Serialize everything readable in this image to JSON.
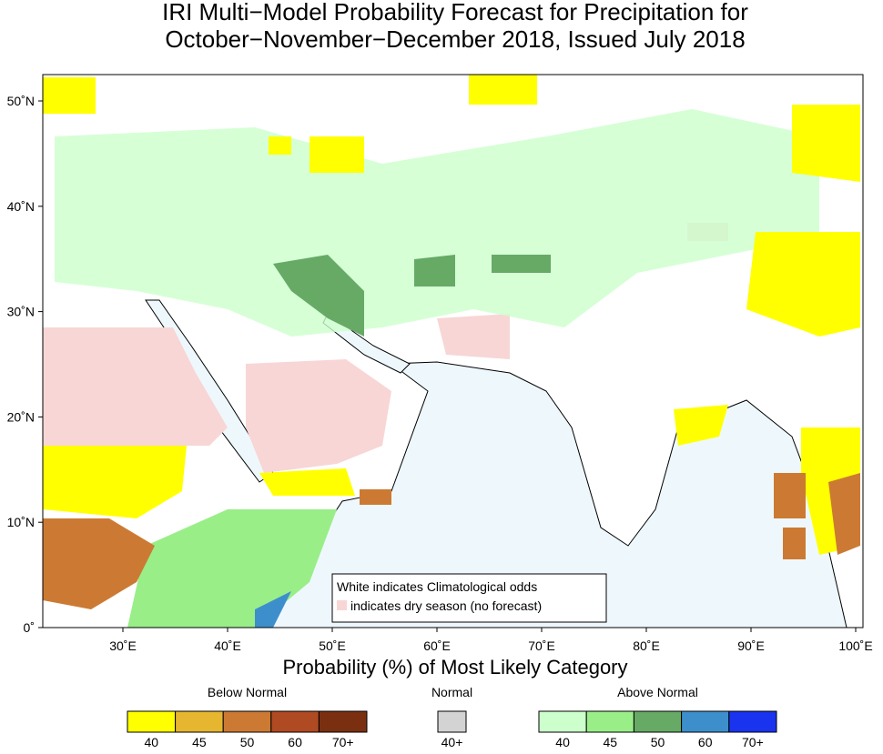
{
  "title": [
    "IRI Multi−Model Probability Forecast for Precipitation for",
    "October−November−December 2018, Issued July 2018"
  ],
  "lat_labels": [
    "50˚N",
    "40˚N",
    "30˚N",
    "20˚N",
    "10˚N",
    "0˚"
  ],
  "lon_labels": [
    "30˚E",
    "40˚E",
    "50˚E",
    "60˚E",
    "70˚E",
    "80˚E",
    "90˚E",
    "100˚E"
  ],
  "map_note": [
    "White indicates Climatological odds",
    "indicates dry season (no forecast)"
  ],
  "colorbar_title": "Probability (%) of Most Likely Category",
  "legend_groups": [
    {
      "name": "Below Normal",
      "colors": [
        "#ffff00",
        "#e6b630",
        "#cc7a33",
        "#b04a22",
        "#7a3010"
      ],
      "labels": [
        "40",
        "45",
        "50",
        "60",
        "70+"
      ]
    },
    {
      "name": "Normal",
      "colors": [
        "#d3d3d3"
      ],
      "labels": [
        "40+"
      ]
    },
    {
      "name": "Above Normal",
      "colors": [
        "#ccffcc",
        "#99ee88",
        "#66aa66",
        "#3d8fcc",
        "#1a33ee"
      ],
      "labels": [
        "40",
        "45",
        "50",
        "60",
        "70+"
      ]
    }
  ]
}
